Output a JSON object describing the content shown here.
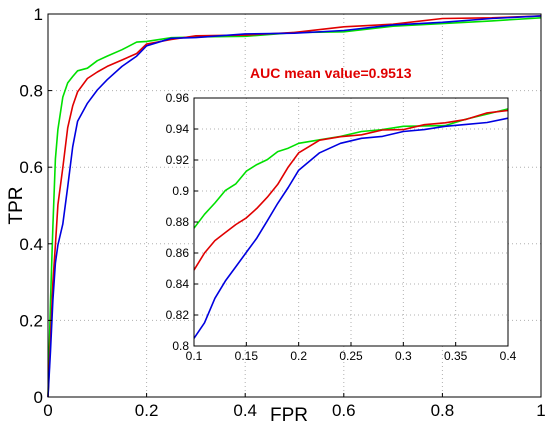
{
  "chart_data": [
    {
      "type": "line",
      "xlabel": "FPR",
      "ylabel": "TPR",
      "xlim": [
        0,
        1
      ],
      "ylim": [
        0,
        1
      ],
      "grid": "dotted",
      "xticks": [
        "0",
        "0.2",
        "0.4",
        "0.6",
        "0.8",
        "1"
      ],
      "yticks": [
        "0",
        "0.2",
        "0.4",
        "0.6",
        "0.8",
        "1"
      ],
      "annotation": "AUC mean value=0.9513",
      "annotation_color": "#e00000",
      "series": [
        {
          "color": "#00e000",
          "x": [
            0,
            0.005,
            0.01,
            0.015,
            0.02,
            0.03,
            0.04,
            0.05,
            0.06,
            0.08,
            0.1,
            0.12,
            0.15,
            0.18,
            0.2,
            0.25,
            0.3,
            0.4,
            0.5,
            0.6,
            0.7,
            0.8,
            0.9,
            1.0
          ],
          "y": [
            0,
            0.25,
            0.45,
            0.62,
            0.7,
            0.78,
            0.82,
            0.84,
            0.85,
            0.86,
            0.875,
            0.89,
            0.91,
            0.925,
            0.93,
            0.935,
            0.94,
            0.945,
            0.95,
            0.955,
            0.965,
            0.975,
            0.985,
            0.99
          ]
        },
        {
          "color": "#e00000",
          "x": [
            0,
            0.005,
            0.01,
            0.015,
            0.02,
            0.03,
            0.04,
            0.05,
            0.06,
            0.08,
            0.1,
            0.12,
            0.15,
            0.18,
            0.2,
            0.25,
            0.3,
            0.4,
            0.5,
            0.6,
            0.7,
            0.8,
            0.9,
            1.0
          ],
          "y": [
            0,
            0.15,
            0.3,
            0.4,
            0.5,
            0.6,
            0.7,
            0.76,
            0.8,
            0.83,
            0.85,
            0.86,
            0.88,
            0.9,
            0.92,
            0.935,
            0.94,
            0.945,
            0.955,
            0.965,
            0.975,
            0.985,
            0.99,
            0.995
          ]
        },
        {
          "color": "#0000e0",
          "x": [
            0,
            0.005,
            0.01,
            0.015,
            0.02,
            0.03,
            0.04,
            0.05,
            0.06,
            0.08,
            0.1,
            0.12,
            0.15,
            0.18,
            0.2,
            0.25,
            0.3,
            0.4,
            0.5,
            0.6,
            0.7,
            0.8,
            0.9,
            1.0
          ],
          "y": [
            0,
            0.12,
            0.25,
            0.35,
            0.4,
            0.45,
            0.55,
            0.65,
            0.72,
            0.77,
            0.8,
            0.83,
            0.86,
            0.89,
            0.92,
            0.935,
            0.94,
            0.945,
            0.95,
            0.96,
            0.97,
            0.98,
            0.985,
            0.995
          ]
        }
      ]
    },
    {
      "type": "line",
      "xlim": [
        0.1,
        0.4
      ],
      "ylim": [
        0.8,
        0.96
      ],
      "xticks": [
        "0.1",
        "0.15",
        "0.2",
        "0.25",
        "0.3",
        "0.35",
        "0.4"
      ],
      "yticks": [
        "0.8",
        "0.82",
        "0.84",
        "0.86",
        "0.88",
        "0.9",
        "0.92",
        "0.94",
        "0.96"
      ],
      "grid": "dotted",
      "series": [
        {
          "color": "#00e000",
          "x": [
            0.1,
            0.11,
            0.12,
            0.13,
            0.14,
            0.15,
            0.16,
            0.17,
            0.18,
            0.19,
            0.2,
            0.22,
            0.24,
            0.26,
            0.28,
            0.3,
            0.32,
            0.34,
            0.36,
            0.38,
            0.4
          ],
          "y": [
            0.876,
            0.885,
            0.893,
            0.9,
            0.905,
            0.912,
            0.917,
            0.921,
            0.925,
            0.928,
            0.93,
            0.933,
            0.936,
            0.938,
            0.94,
            0.941,
            0.942,
            0.943,
            0.946,
            0.95,
            0.953
          ]
        },
        {
          "color": "#e00000",
          "x": [
            0.1,
            0.11,
            0.12,
            0.13,
            0.14,
            0.15,
            0.16,
            0.17,
            0.18,
            0.19,
            0.2,
            0.22,
            0.24,
            0.26,
            0.28,
            0.3,
            0.32,
            0.34,
            0.36,
            0.38,
            0.4
          ],
          "y": [
            0.849,
            0.86,
            0.868,
            0.874,
            0.878,
            0.883,
            0.888,
            0.896,
            0.905,
            0.915,
            0.925,
            0.932,
            0.935,
            0.937,
            0.939,
            0.94,
            0.942,
            0.944,
            0.947,
            0.95,
            0.952
          ]
        },
        {
          "color": "#0000e0",
          "x": [
            0.1,
            0.11,
            0.12,
            0.13,
            0.14,
            0.15,
            0.16,
            0.17,
            0.18,
            0.19,
            0.2,
            0.22,
            0.24,
            0.26,
            0.28,
            0.3,
            0.32,
            0.34,
            0.36,
            0.38,
            0.4
          ],
          "y": [
            0.805,
            0.815,
            0.83,
            0.842,
            0.852,
            0.86,
            0.87,
            0.88,
            0.892,
            0.903,
            0.913,
            0.925,
            0.93,
            0.934,
            0.936,
            0.938,
            0.94,
            0.941,
            0.943,
            0.945,
            0.947
          ]
        }
      ]
    }
  ]
}
